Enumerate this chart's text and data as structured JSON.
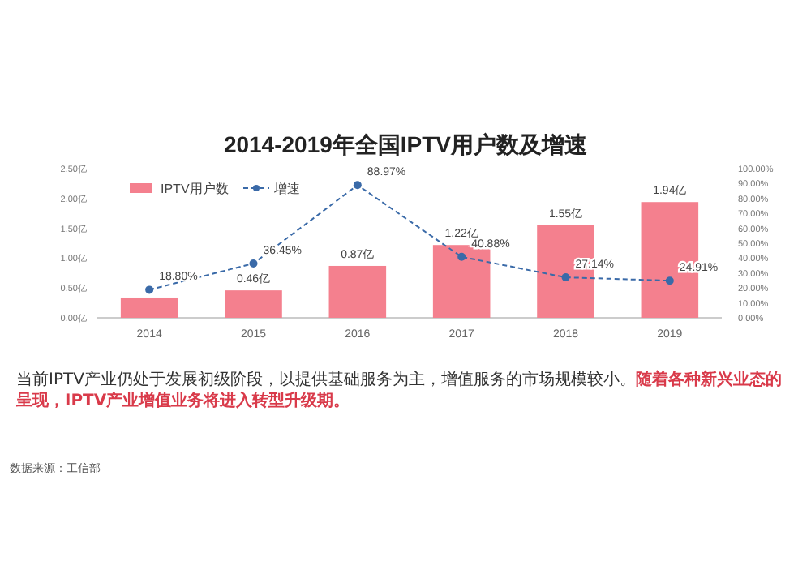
{
  "chart_data": {
    "type": "bar",
    "title": "2014-2019年全国IPTV用户数及增速",
    "categories": [
      "2014",
      "2015",
      "2016",
      "2017",
      "2018",
      "2019"
    ],
    "series": [
      {
        "name": "IPTV用户数",
        "color": "#f4808e",
        "values": [
          0.34,
          0.46,
          0.87,
          1.22,
          1.55,
          1.94
        ],
        "value_labels": [
          null,
          "0.46亿",
          "0.87亿",
          "1.22亿",
          "1.55亿",
          "1.94亿"
        ]
      },
      {
        "name": "增速",
        "type": "line",
        "axis": "y2",
        "color": "#3a6aa8",
        "marker": "circle",
        "line_style": "dashed",
        "values": [
          18.8,
          36.45,
          88.97,
          40.88,
          27.14,
          24.91
        ],
        "value_labels": [
          "18.80%",
          "36.45%",
          "88.97%",
          "40.88%",
          "27.14%",
          "24.91%"
        ]
      }
    ],
    "ylim": [
      0,
      2.5
    ],
    "yticks": [
      {
        "value": 0,
        "label": "0.00亿"
      },
      {
        "value": 0.5,
        "label": "0.50亿"
      },
      {
        "value": 1,
        "label": "1.00亿"
      },
      {
        "value": 1.5,
        "label": "1.50亿"
      },
      {
        "value": 2,
        "label": "2.00亿"
      },
      {
        "value": 2.5,
        "label": "2.50亿"
      }
    ],
    "y2lim": [
      0,
      100
    ],
    "y2ticks": [
      {
        "value": 0,
        "label": "0.00%"
      },
      {
        "value": 10,
        "label": "10.00%"
      },
      {
        "value": 20,
        "label": "20.00%"
      },
      {
        "value": 30,
        "label": "30.00%"
      },
      {
        "value": 40,
        "label": "40.00%"
      },
      {
        "value": 50,
        "label": "50.00%"
      },
      {
        "value": 60,
        "label": "60.00%"
      },
      {
        "value": 70,
        "label": "70.00%"
      },
      {
        "value": 80,
        "label": "80.00%"
      },
      {
        "value": 90,
        "label": "90.00%"
      },
      {
        "value": 100,
        "label": "100.00%"
      }
    ],
    "legend": "top left",
    "grid": false,
    "annotations": [
      "当前IPTV产业仍处于发展初级阶段，以提供基础服务为主，增值服务的市场规模较小。",
      "随着各种新兴业态的呈现，IPTV产业增值业务将进入转型升级期。",
      "数据来源：工信部"
    ]
  }
}
